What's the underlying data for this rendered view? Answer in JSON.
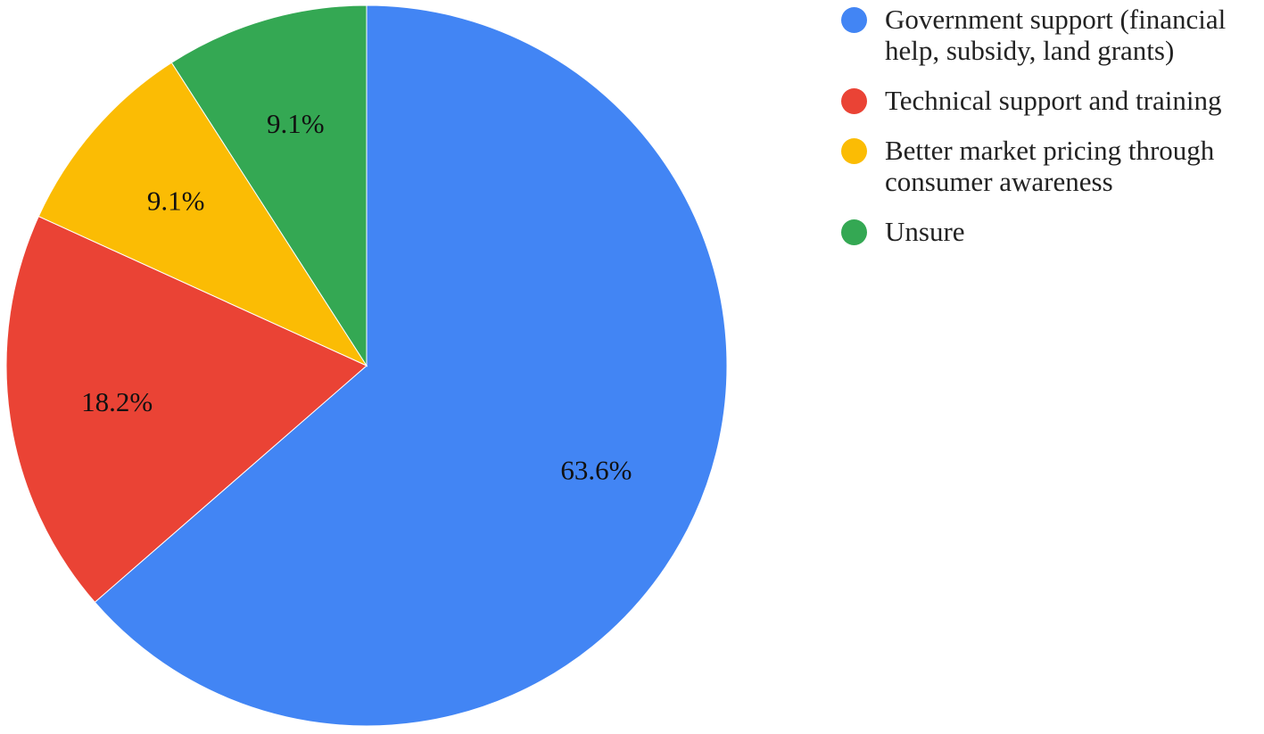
{
  "chart_data": {
    "type": "pie",
    "title": "",
    "start_angle_deg": 0,
    "direction": "clockwise",
    "legend_position": "right",
    "slices": [
      {
        "name": "Government support (financial\nhelp, subsidy, land grants)",
        "value": 63.6,
        "label": "63.6%",
        "color": "#4285F4"
      },
      {
        "name": "Technical support and training",
        "value": 18.2,
        "label": "18.2%",
        "color": "#EA4335"
      },
      {
        "name": "Better market pricing through\nconsumer awareness",
        "value": 9.1,
        "label": "9.1%",
        "color": "#FBBC04"
      },
      {
        "name": "Unsure",
        "value": 9.1,
        "label": "9.1%",
        "color": "#34A853"
      }
    ]
  }
}
